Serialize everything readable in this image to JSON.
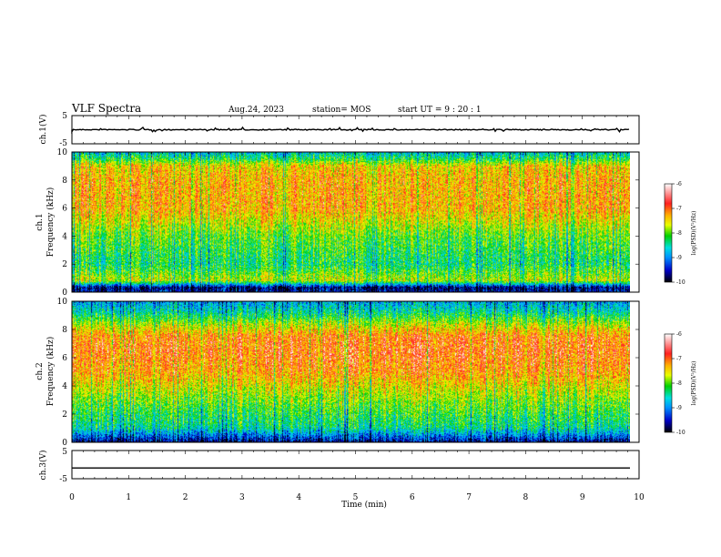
{
  "header": {
    "title": "VLF Spectra",
    "date": "Aug.24, 2023",
    "station": "station= MOS",
    "start": "start  UT  =   9  : 20 : 1"
  },
  "colors": {
    "spectrum_scale": [
      "#000000",
      "#0000c8",
      "#0090ff",
      "#00e0e0",
      "#00d000",
      "#e8ff00",
      "#ffb000",
      "#ff2020",
      "#ffffff"
    ]
  },
  "chart_data": [
    {
      "type": "line",
      "name": "ch1-waveform",
      "ylabel": "ch.1(V)",
      "ylim": [
        -5,
        5
      ],
      "yticks": [
        "5",
        "-5"
      ],
      "x": [
        0,
        10
      ],
      "values": [
        0,
        0
      ],
      "description_level": "flat trace near 0 V with small spikes"
    },
    {
      "type": "heatmap",
      "name": "ch1-spectrogram",
      "ylabel": "ch.1\nFrequency (kHz)",
      "ylabel_lines": [
        "ch.1",
        "Frequency (kHz)"
      ],
      "xlim": [
        0,
        9.83
      ],
      "ylim": [
        0,
        10
      ],
      "yticks": [
        "0",
        "2",
        "4",
        "6",
        "8",
        "10"
      ],
      "colorbar": {
        "label": "log(PSD)(V²/Hz)",
        "range": [
          -10,
          -6
        ],
        "ticks": [
          "-6",
          "-7",
          "-8",
          "-9",
          "-10"
        ]
      },
      "profile_freq_khz": [
        0,
        0.3,
        0.8,
        2,
        4,
        6,
        8,
        9,
        9.5,
        10
      ],
      "profile_log_psd": [
        -9.5,
        -9.7,
        -7.5,
        -8.2,
        -7.8,
        -7.0,
        -7.0,
        -7.2,
        -8.0,
        -8.6
      ]
    },
    {
      "type": "heatmap",
      "name": "ch2-spectrogram",
      "ylabel": "ch.2\nFrequency (kHz)",
      "ylabel_lines": [
        "ch.2",
        "Frequency (kHz)"
      ],
      "xlim": [
        0,
        9.83
      ],
      "ylim": [
        0,
        10
      ],
      "yticks": [
        "0",
        "2",
        "4",
        "6",
        "8",
        "10"
      ],
      "colorbar": {
        "label": "log(PSD)(V²/Hz)",
        "range": [
          -10,
          -6
        ],
        "ticks": [
          "-6",
          "-7",
          "-8",
          "-9",
          "-10"
        ]
      },
      "profile_freq_khz": [
        0,
        0.3,
        1,
        2,
        3.5,
        5,
        6.5,
        7.5,
        8.5,
        9.2,
        10
      ],
      "profile_log_psd": [
        -9.6,
        -9.2,
        -8.3,
        -8.0,
        -7.5,
        -6.9,
        -6.7,
        -6.8,
        -7.6,
        -8.3,
        -8.8
      ]
    },
    {
      "type": "line",
      "name": "ch3-waveform",
      "ylabel": "ch.3(V)",
      "ylim": [
        -5,
        5
      ],
      "yticks": [
        "5",
        "-5"
      ],
      "x": [
        0,
        10
      ],
      "values": [
        -1.2,
        -1.2
      ]
    }
  ],
  "xaxis": {
    "label": "Time  (min)",
    "xlim": [
      0,
      10
    ],
    "ticks": [
      "0",
      "1",
      "2",
      "3",
      "4",
      "5",
      "6",
      "7",
      "8",
      "9",
      "10"
    ]
  }
}
